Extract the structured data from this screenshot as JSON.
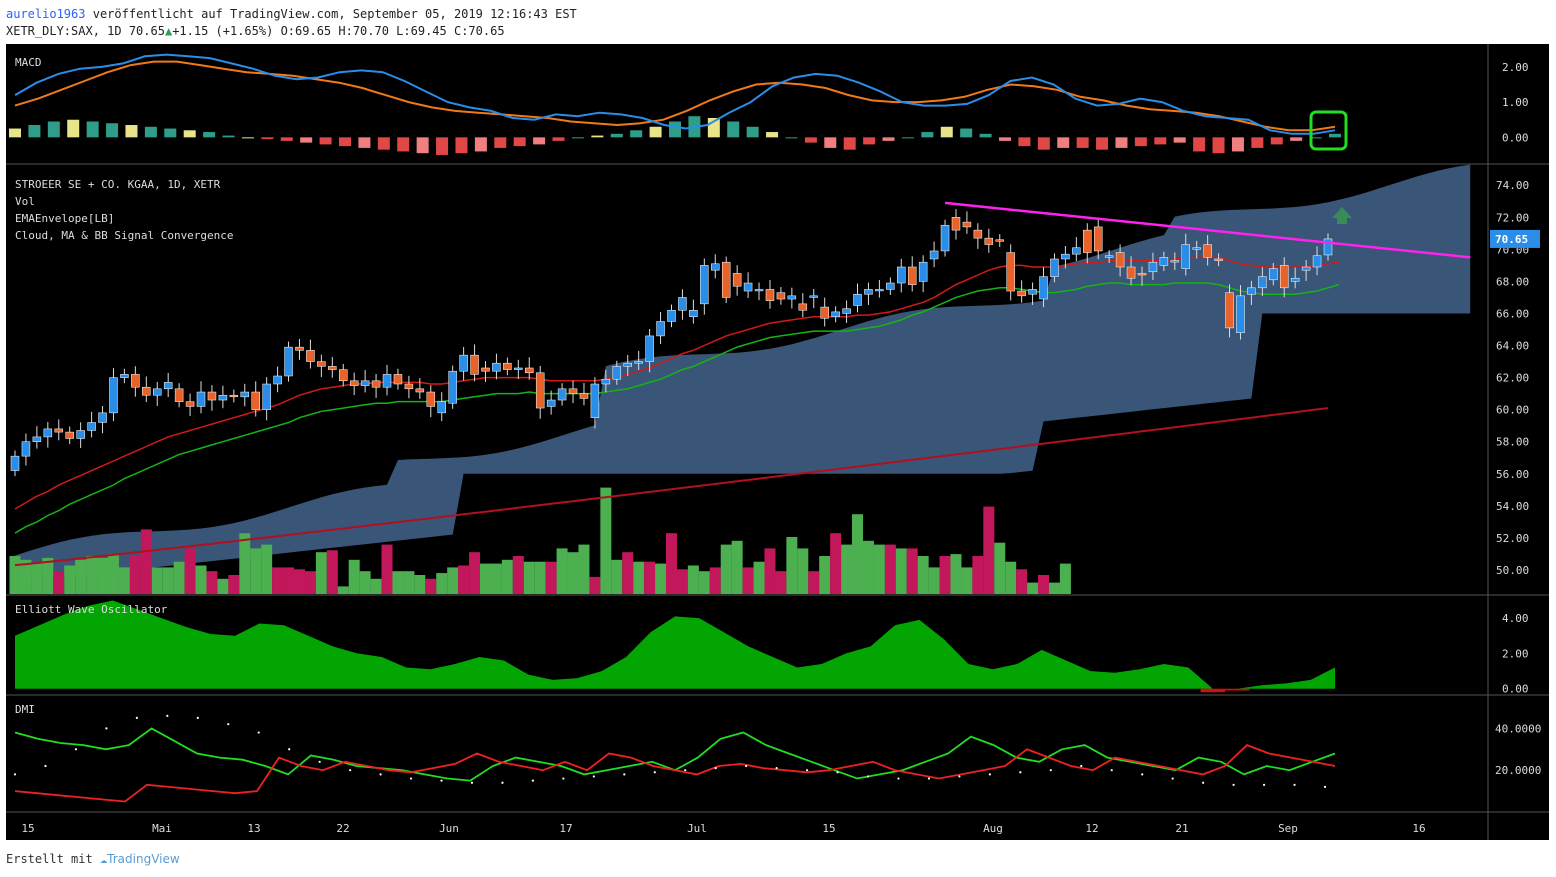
{
  "header": {
    "author": "aurelio1963",
    "published": "veröffentlicht auf TradingView.com, September 05, 2019 12:16:43 EST",
    "symbol": "XETR_DLY:SAX, 1D",
    "last": "70.65",
    "change": "+1.15 (+1.65%)",
    "ohlc": "O:69.65 H:70.70 L:69.45 C:70.65"
  },
  "footer": {
    "created": "Erstellt mit",
    "brand": "TradingView"
  },
  "colors": {
    "bg": "#000000",
    "up": "#2a8ee8",
    "down": "#e8632a",
    "ema_short": "#d11a1a",
    "ema_mid": "#16b316",
    "ema_long": "#b01020",
    "cloud": "#3c5a7d",
    "trend": "#ff22ee",
    "vol_up": "#4caf50",
    "vol_down": "#c2185b",
    "macd": "#2a8ee8",
    "signal": "#f07a1a",
    "ewo": "#03a503",
    "dmi_plus": "#22dd22",
    "dmi_minus": "#ee2222"
  },
  "chart_data": {
    "type": "candlestick",
    "title": "STROEER SE + CO. KGAA, 1D, XETR",
    "x_ticks": [
      "15",
      "Mai",
      "13",
      "22",
      "Jun",
      "17",
      "Jul",
      "15",
      "Aug",
      "12",
      "21",
      "Sep",
      "16"
    ],
    "price_axis": {
      "ylim": [
        48.5,
        75.2
      ],
      "ticks": [
        "74.00",
        "72.00",
        "70.00",
        "68.00",
        "66.00",
        "64.00",
        "62.00",
        "60.00",
        "58.00",
        "56.00",
        "54.00",
        "52.00",
        "50.00"
      ],
      "last_label": "70.65"
    },
    "indicator_labels": [
      "Vol",
      "EMAEnvelope[LB]",
      "Cloud, MA & BB Signal Convergence"
    ],
    "candles": [
      [
        56.2,
        57.1
      ],
      [
        57.1,
        58.0
      ],
      [
        58.0,
        58.3
      ],
      [
        58.3,
        58.8
      ],
      [
        58.8,
        58.6
      ],
      [
        58.6,
        58.2
      ],
      [
        58.2,
        58.7
      ],
      [
        58.7,
        59.2
      ],
      [
        59.2,
        59.8
      ],
      [
        59.8,
        62.0
      ],
      [
        62.0,
        62.2
      ],
      [
        62.2,
        61.4
      ],
      [
        61.4,
        60.9
      ],
      [
        60.9,
        61.3
      ],
      [
        61.3,
        61.7
      ],
      [
        61.3,
        60.5
      ],
      [
        60.5,
        60.2
      ],
      [
        60.2,
        61.1
      ],
      [
        61.1,
        60.6
      ],
      [
        60.6,
        60.9
      ],
      [
        60.9,
        60.8
      ],
      [
        60.8,
        61.1
      ],
      [
        61.1,
        60.0
      ],
      [
        60.0,
        61.6
      ],
      [
        61.6,
        62.1
      ],
      [
        62.1,
        63.9
      ],
      [
        63.9,
        63.7
      ],
      [
        63.7,
        63.0
      ],
      [
        63.0,
        62.7
      ],
      [
        62.7,
        62.5
      ],
      [
        62.5,
        61.8
      ],
      [
        61.8,
        61.5
      ],
      [
        61.5,
        61.8
      ],
      [
        61.8,
        61.4
      ],
      [
        61.4,
        62.2
      ],
      [
        62.2,
        61.6
      ],
      [
        61.6,
        61.3
      ],
      [
        61.3,
        61.1
      ],
      [
        61.1,
        60.2
      ],
      [
        59.8,
        60.5
      ],
      [
        60.4,
        62.4
      ],
      [
        62.4,
        63.4
      ],
      [
        63.4,
        62.2
      ],
      [
        62.6,
        62.4
      ],
      [
        62.4,
        62.9
      ],
      [
        62.9,
        62.5
      ],
      [
        62.5,
        62.6
      ],
      [
        62.6,
        62.3
      ],
      [
        62.3,
        60.1
      ],
      [
        60.2,
        60.6
      ],
      [
        60.6,
        61.3
      ],
      [
        61.3,
        61.0
      ],
      [
        61.0,
        60.7
      ],
      [
        59.5,
        61.6
      ],
      [
        61.6,
        61.9
      ],
      [
        61.9,
        62.7
      ],
      [
        62.7,
        62.9
      ],
      [
        62.9,
        63.0
      ],
      [
        63.0,
        64.6
      ],
      [
        64.6,
        65.5
      ],
      [
        65.5,
        66.2
      ],
      [
        66.2,
        67.0
      ],
      [
        65.8,
        66.2
      ],
      [
        66.6,
        69.0
      ],
      [
        68.7,
        69.1
      ],
      [
        69.2,
        67.0
      ],
      [
        68.5,
        67.7
      ],
      [
        67.4,
        67.9
      ],
      [
        67.5,
        67.5
      ],
      [
        67.5,
        66.8
      ],
      [
        67.3,
        66.9
      ],
      [
        66.9,
        67.1
      ],
      [
        66.6,
        66.2
      ],
      [
        67.0,
        67.1
      ],
      [
        66.4,
        65.7
      ],
      [
        65.8,
        66.1
      ],
      [
        66.0,
        66.3
      ],
      [
        66.5,
        67.2
      ],
      [
        67.2,
        67.5
      ],
      [
        67.5,
        67.5
      ],
      [
        67.5,
        67.9
      ],
      [
        67.9,
        68.9
      ],
      [
        68.9,
        67.8
      ],
      [
        68.0,
        69.2
      ],
      [
        69.4,
        69.9
      ],
      [
        69.9,
        71.5
      ],
      [
        72.0,
        71.2
      ],
      [
        71.7,
        71.4
      ],
      [
        71.2,
        70.7
      ],
      [
        70.7,
        70.3
      ],
      [
        70.6,
        70.5
      ],
      [
        69.8,
        67.4
      ],
      [
        67.4,
        67.1
      ],
      [
        67.2,
        67.5
      ],
      [
        66.9,
        68.3
      ],
      [
        68.3,
        69.4
      ],
      [
        69.4,
        69.7
      ],
      [
        69.7,
        70.1
      ],
      [
        71.2,
        69.8
      ],
      [
        71.4,
        69.9
      ],
      [
        69.5,
        69.6
      ],
      [
        69.8,
        68.9
      ],
      [
        68.9,
        68.2
      ],
      [
        68.5,
        68.4
      ],
      [
        68.6,
        69.2
      ],
      [
        69.0,
        69.5
      ],
      [
        69.3,
        69.3
      ],
      [
        68.8,
        70.3
      ],
      [
        70.1,
        70.1
      ],
      [
        70.3,
        69.5
      ],
      [
        69.4,
        69.3
      ],
      [
        67.3,
        65.1
      ],
      [
        64.8,
        67.1
      ],
      [
        67.2,
        67.6
      ],
      [
        67.6,
        68.3
      ],
      [
        68.1,
        68.8
      ],
      [
        69.0,
        67.6
      ],
      [
        68.0,
        68.2
      ],
      [
        68.7,
        68.9
      ],
      [
        68.9,
        69.6
      ],
      [
        69.65,
        70.65
      ]
    ],
    "ema_short": [
      53.8,
      54.2,
      54.6,
      54.9,
      55.3,
      55.6,
      55.9,
      56.2,
      56.5,
      56.8,
      57.1,
      57.4,
      57.7,
      58.0,
      58.3,
      58.5,
      58.7,
      58.9,
      59.1,
      59.3,
      59.5,
      59.7,
      59.9,
      60.1,
      60.3,
      60.6,
      60.9,
      61.1,
      61.3,
      61.4,
      61.5,
      61.6,
      61.6,
      61.7,
      61.7,
      61.7,
      61.7,
      61.7,
      61.6,
      61.6,
      61.7,
      61.8,
      61.9,
      62.0,
      62.0,
      62.0,
      62.0,
      62.0,
      61.9,
      61.8,
      61.8,
      61.8,
      61.8,
      61.8,
      61.9,
      62.0,
      62.2,
      62.4,
      62.6,
      62.9,
      63.2,
      63.5,
      63.7,
      64.0,
      64.3,
      64.6,
      64.8,
      65.0,
      65.2,
      65.4,
      65.5,
      65.6,
      65.7,
      65.8,
      65.8,
      65.8,
      65.8,
      65.9,
      65.9,
      66.0,
      66.1,
      66.3,
      66.5,
      66.7,
      67.0,
      67.4,
      67.8,
      68.1,
      68.4,
      68.7,
      68.9,
      69.0,
      69.0,
      68.9,
      68.9,
      68.9,
      69.0,
      69.1,
      69.2,
      69.2,
      69.3,
      69.3,
      69.3,
      69.3,
      69.3,
      69.3,
      69.4,
      69.5,
      69.5,
      69.5,
      69.5,
      69.3,
      69.1,
      69.0,
      68.9,
      68.9,
      68.9,
      68.9,
      68.9,
      69.0,
      69.1,
      69.2
    ],
    "ema_mid": [
      52.3,
      52.7,
      53.0,
      53.4,
      53.7,
      54.1,
      54.4,
      54.7,
      55.0,
      55.3,
      55.7,
      56.0,
      56.3,
      56.6,
      56.9,
      57.2,
      57.4,
      57.6,
      57.8,
      58.0,
      58.2,
      58.4,
      58.6,
      58.8,
      59.0,
      59.2,
      59.5,
      59.7,
      59.9,
      60.0,
      60.1,
      60.2,
      60.3,
      60.4,
      60.4,
      60.5,
      60.5,
      60.5,
      60.5,
      60.5,
      60.6,
      60.7,
      60.8,
      60.9,
      61.0,
      61.0,
      61.0,
      61.1,
      61.0,
      61.0,
      61.0,
      61.0,
      61.0,
      61.0,
      61.1,
      61.2,
      61.3,
      61.5,
      61.7,
      61.9,
      62.2,
      62.5,
      62.7,
      63.0,
      63.3,
      63.6,
      63.9,
      64.1,
      64.3,
      64.5,
      64.6,
      64.7,
      64.8,
      64.9,
      64.9,
      64.9,
      64.9,
      65.0,
      65.1,
      65.2,
      65.4,
      65.6,
      65.9,
      66.1,
      66.4,
      66.7,
      67.0,
      67.2,
      67.4,
      67.5,
      67.6,
      67.6,
      67.5,
      67.4,
      67.3,
      67.3,
      67.4,
      67.5,
      67.7,
      67.8,
      67.9,
      67.9,
      67.8,
      67.8,
      67.8,
      67.8,
      67.9,
      67.9,
      67.9,
      67.9,
      67.8,
      67.6,
      67.4,
      67.3,
      67.2,
      67.2,
      67.2,
      67.2,
      67.3,
      67.4,
      67.6,
      67.8
    ],
    "ema_long_range": [
      50.3,
      60.1
    ],
    "trendline": {
      "from": [
        72.9
      ],
      "to": [
        69.5
      ]
    },
    "volume": [
      [
        1,
        1.0
      ],
      [
        1,
        0.9
      ],
      [
        1,
        0.8
      ],
      [
        1,
        0.95
      ],
      [
        0,
        0.6
      ],
      [
        1,
        0.75
      ],
      [
        1,
        0.9
      ],
      [
        1,
        1.0
      ],
      [
        1,
        0.95
      ],
      [
        1,
        1.05
      ],
      [
        1,
        0.7
      ],
      [
        0,
        1.0
      ],
      [
        0,
        1.7
      ],
      [
        1,
        0.7
      ],
      [
        1,
        0.7
      ],
      [
        1,
        0.85
      ],
      [
        0,
        1.2
      ],
      [
        1,
        0.75
      ],
      [
        0,
        0.6
      ],
      [
        1,
        0.4
      ],
      [
        0,
        0.5
      ],
      [
        1,
        1.6
      ],
      [
        1,
        1.2
      ],
      [
        1,
        1.3
      ],
      [
        0,
        0.7
      ],
      [
        0,
        0.7
      ],
      [
        0,
        0.65
      ],
      [
        0,
        0.6
      ],
      [
        1,
        1.1
      ],
      [
        0,
        1.15
      ],
      [
        1,
        0.2
      ],
      [
        1,
        0.9
      ],
      [
        1,
        0.6
      ],
      [
        1,
        0.4
      ],
      [
        0,
        1.3
      ],
      [
        1,
        0.6
      ],
      [
        1,
        0.6
      ],
      [
        1,
        0.5
      ],
      [
        0,
        0.4
      ],
      [
        1,
        0.55
      ],
      [
        1,
        0.7
      ],
      [
        0,
        0.75
      ],
      [
        0,
        1.1
      ],
      [
        1,
        0.8
      ],
      [
        1,
        0.8
      ],
      [
        1,
        0.9
      ],
      [
        0,
        1.0
      ],
      [
        1,
        0.85
      ],
      [
        1,
        0.85
      ],
      [
        0,
        0.85
      ],
      [
        1,
        1.2
      ],
      [
        1,
        1.1
      ],
      [
        1,
        1.3
      ],
      [
        0,
        0.45
      ],
      [
        1,
        2.8
      ],
      [
        1,
        0.9
      ],
      [
        0,
        1.1
      ],
      [
        1,
        0.85
      ],
      [
        0,
        0.85
      ],
      [
        1,
        0.8
      ],
      [
        0,
        1.6
      ],
      [
        0,
        0.65
      ],
      [
        1,
        0.75
      ],
      [
        1,
        0.6
      ],
      [
        0,
        0.7
      ],
      [
        1,
        1.3
      ],
      [
        1,
        1.4
      ],
      [
        0,
        0.7
      ],
      [
        1,
        0.85
      ],
      [
        0,
        1.2
      ],
      [
        0,
        0.6
      ],
      [
        1,
        1.5
      ],
      [
        1,
        1.2
      ],
      [
        0,
        0.6
      ],
      [
        1,
        1.0
      ],
      [
        0,
        1.6
      ],
      [
        1,
        1.3
      ],
      [
        1,
        2.1
      ],
      [
        1,
        1.4
      ],
      [
        1,
        1.3
      ],
      [
        0,
        1.3
      ],
      [
        1,
        1.2
      ],
      [
        0,
        1.2
      ],
      [
        1,
        1.0
      ],
      [
        1,
        0.7
      ],
      [
        0,
        1.0
      ],
      [
        1,
        1.05
      ],
      [
        1,
        0.7
      ],
      [
        0,
        1.0
      ],
      [
        0,
        2.3
      ],
      [
        1,
        1.35
      ],
      [
        1,
        0.85
      ],
      [
        0,
        0.65
      ],
      [
        1,
        0.3
      ],
      [
        0,
        0.5
      ],
      [
        1,
        0.3
      ],
      [
        1,
        0.8
      ]
    ],
    "macd": {
      "ylim": [
        -0.7,
        2.65
      ],
      "ticks": [
        "2.00",
        "1.00",
        "0.00"
      ],
      "macd": [
        1.2,
        1.55,
        1.8,
        1.95,
        2.0,
        2.1,
        2.3,
        2.35,
        2.3,
        2.25,
        2.1,
        1.95,
        1.75,
        1.65,
        1.7,
        1.85,
        1.9,
        1.85,
        1.6,
        1.3,
        1.0,
        0.85,
        0.75,
        0.55,
        0.5,
        0.65,
        0.6,
        0.7,
        0.65,
        0.55,
        0.35,
        0.25,
        0.35,
        0.7,
        1.0,
        1.45,
        1.7,
        1.8,
        1.75,
        1.55,
        1.3,
        1.0,
        0.9,
        0.9,
        0.95,
        1.2,
        1.6,
        1.7,
        1.5,
        1.1,
        0.9,
        0.95,
        1.1,
        1.0,
        0.75,
        0.6,
        0.55,
        0.5,
        0.2,
        0.1,
        0.1,
        0.2
      ],
      "signal": [
        0.9,
        1.1,
        1.35,
        1.6,
        1.85,
        2.05,
        2.15,
        2.15,
        2.05,
        1.95,
        1.85,
        1.8,
        1.75,
        1.65,
        1.55,
        1.4,
        1.2,
        1.0,
        0.85,
        0.75,
        0.7,
        0.65,
        0.6,
        0.55,
        0.45,
        0.4,
        0.35,
        0.4,
        0.5,
        0.75,
        1.05,
        1.3,
        1.5,
        1.55,
        1.5,
        1.4,
        1.2,
        1.05,
        1.0,
        1.0,
        1.05,
        1.15,
        1.35,
        1.5,
        1.45,
        1.35,
        1.15,
        1.05,
        0.9,
        0.8,
        0.75,
        0.7,
        0.6,
        0.45,
        0.3,
        0.2,
        0.2,
        0.3
      ],
      "hist": [
        0.25,
        0.35,
        0.45,
        0.5,
        0.45,
        0.4,
        0.35,
        0.3,
        0.25,
        0.2,
        0.15,
        0.05,
        0.0,
        -0.05,
        -0.1,
        -0.15,
        -0.2,
        -0.25,
        -0.3,
        -0.35,
        -0.4,
        -0.45,
        -0.5,
        -0.45,
        -0.4,
        -0.3,
        -0.25,
        -0.2,
        -0.1,
        0.0,
        0.05,
        0.1,
        0.2,
        0.3,
        0.45,
        0.6,
        0.55,
        0.45,
        0.3,
        0.15,
        0.0,
        -0.15,
        -0.3,
        -0.35,
        -0.2,
        -0.1,
        0.0,
        0.15,
        0.3,
        0.25,
        0.1,
        -0.1,
        -0.25,
        -0.35,
        -0.3,
        -0.3,
        -0.35,
        -0.3,
        -0.25,
        -0.2,
        -0.15,
        -0.4,
        -0.45,
        -0.4,
        -0.3,
        -0.2,
        -0.1,
        0.0,
        0.1
      ]
    },
    "ewo": {
      "ylim": [
        -0.3,
        5.2
      ],
      "ticks": [
        "4.00",
        "2.00",
        "0.00"
      ],
      "label": "Elliott Wave Oscillator",
      "values": [
        3.0,
        3.6,
        4.2,
        4.7,
        5.0,
        4.5,
        4.0,
        3.5,
        3.1,
        3.0,
        3.7,
        3.6,
        3.0,
        2.4,
        2.0,
        1.8,
        1.2,
        1.1,
        1.4,
        1.8,
        1.6,
        0.8,
        0.5,
        0.6,
        1.0,
        1.8,
        3.2,
        4.1,
        4.0,
        3.2,
        2.4,
        1.8,
        1.2,
        1.4,
        2.0,
        2.4,
        3.6,
        3.9,
        2.8,
        1.4,
        1.1,
        1.4,
        2.2,
        1.6,
        1.0,
        0.9,
        1.1,
        1.4,
        1.2,
        -0.2,
        -0.1,
        0.2,
        0.3,
        0.5,
        1.2
      ]
    },
    "dmi": {
      "ylim": [
        0,
        55
      ],
      "ticks": [
        "40.0000",
        "20.0000"
      ],
      "label": "DMI",
      "plus": [
        38,
        35,
        33,
        32,
        30,
        32,
        40,
        34,
        28,
        26,
        25,
        22,
        18,
        27,
        25,
        22,
        21,
        20,
        18,
        16,
        15,
        22,
        26,
        24,
        22,
        18,
        20,
        22,
        24,
        20,
        26,
        35,
        38,
        32,
        28,
        24,
        20,
        16,
        18,
        20,
        24,
        28,
        36,
        32,
        26,
        24,
        30,
        32,
        26,
        24,
        22,
        20,
        26,
        24,
        18,
        22,
        20,
        24,
        28
      ],
      "minus": [
        10,
        9,
        8,
        7,
        6,
        5,
        13,
        12,
        11,
        10,
        9,
        10,
        26,
        22,
        20,
        24,
        22,
        20,
        19,
        21,
        23,
        28,
        24,
        22,
        20,
        24,
        20,
        28,
        26,
        22,
        20,
        18,
        22,
        23,
        21,
        20,
        19,
        20,
        22,
        24,
        20,
        18,
        16,
        18,
        20,
        22,
        30,
        26,
        22,
        20,
        26,
        24,
        22,
        20,
        18,
        22,
        32,
        28,
        26,
        24,
        22
      ],
      "adx": [
        18,
        22,
        30,
        40,
        45,
        46,
        45,
        42,
        38,
        30,
        24,
        20,
        18,
        16,
        15,
        14,
        14,
        15,
        16,
        17,
        18,
        19,
        20,
        21,
        22,
        21,
        20,
        19,
        17,
        16,
        16,
        17,
        18,
        19,
        20,
        22,
        20,
        18,
        16,
        14,
        13,
        13,
        13,
        12
      ]
    }
  }
}
